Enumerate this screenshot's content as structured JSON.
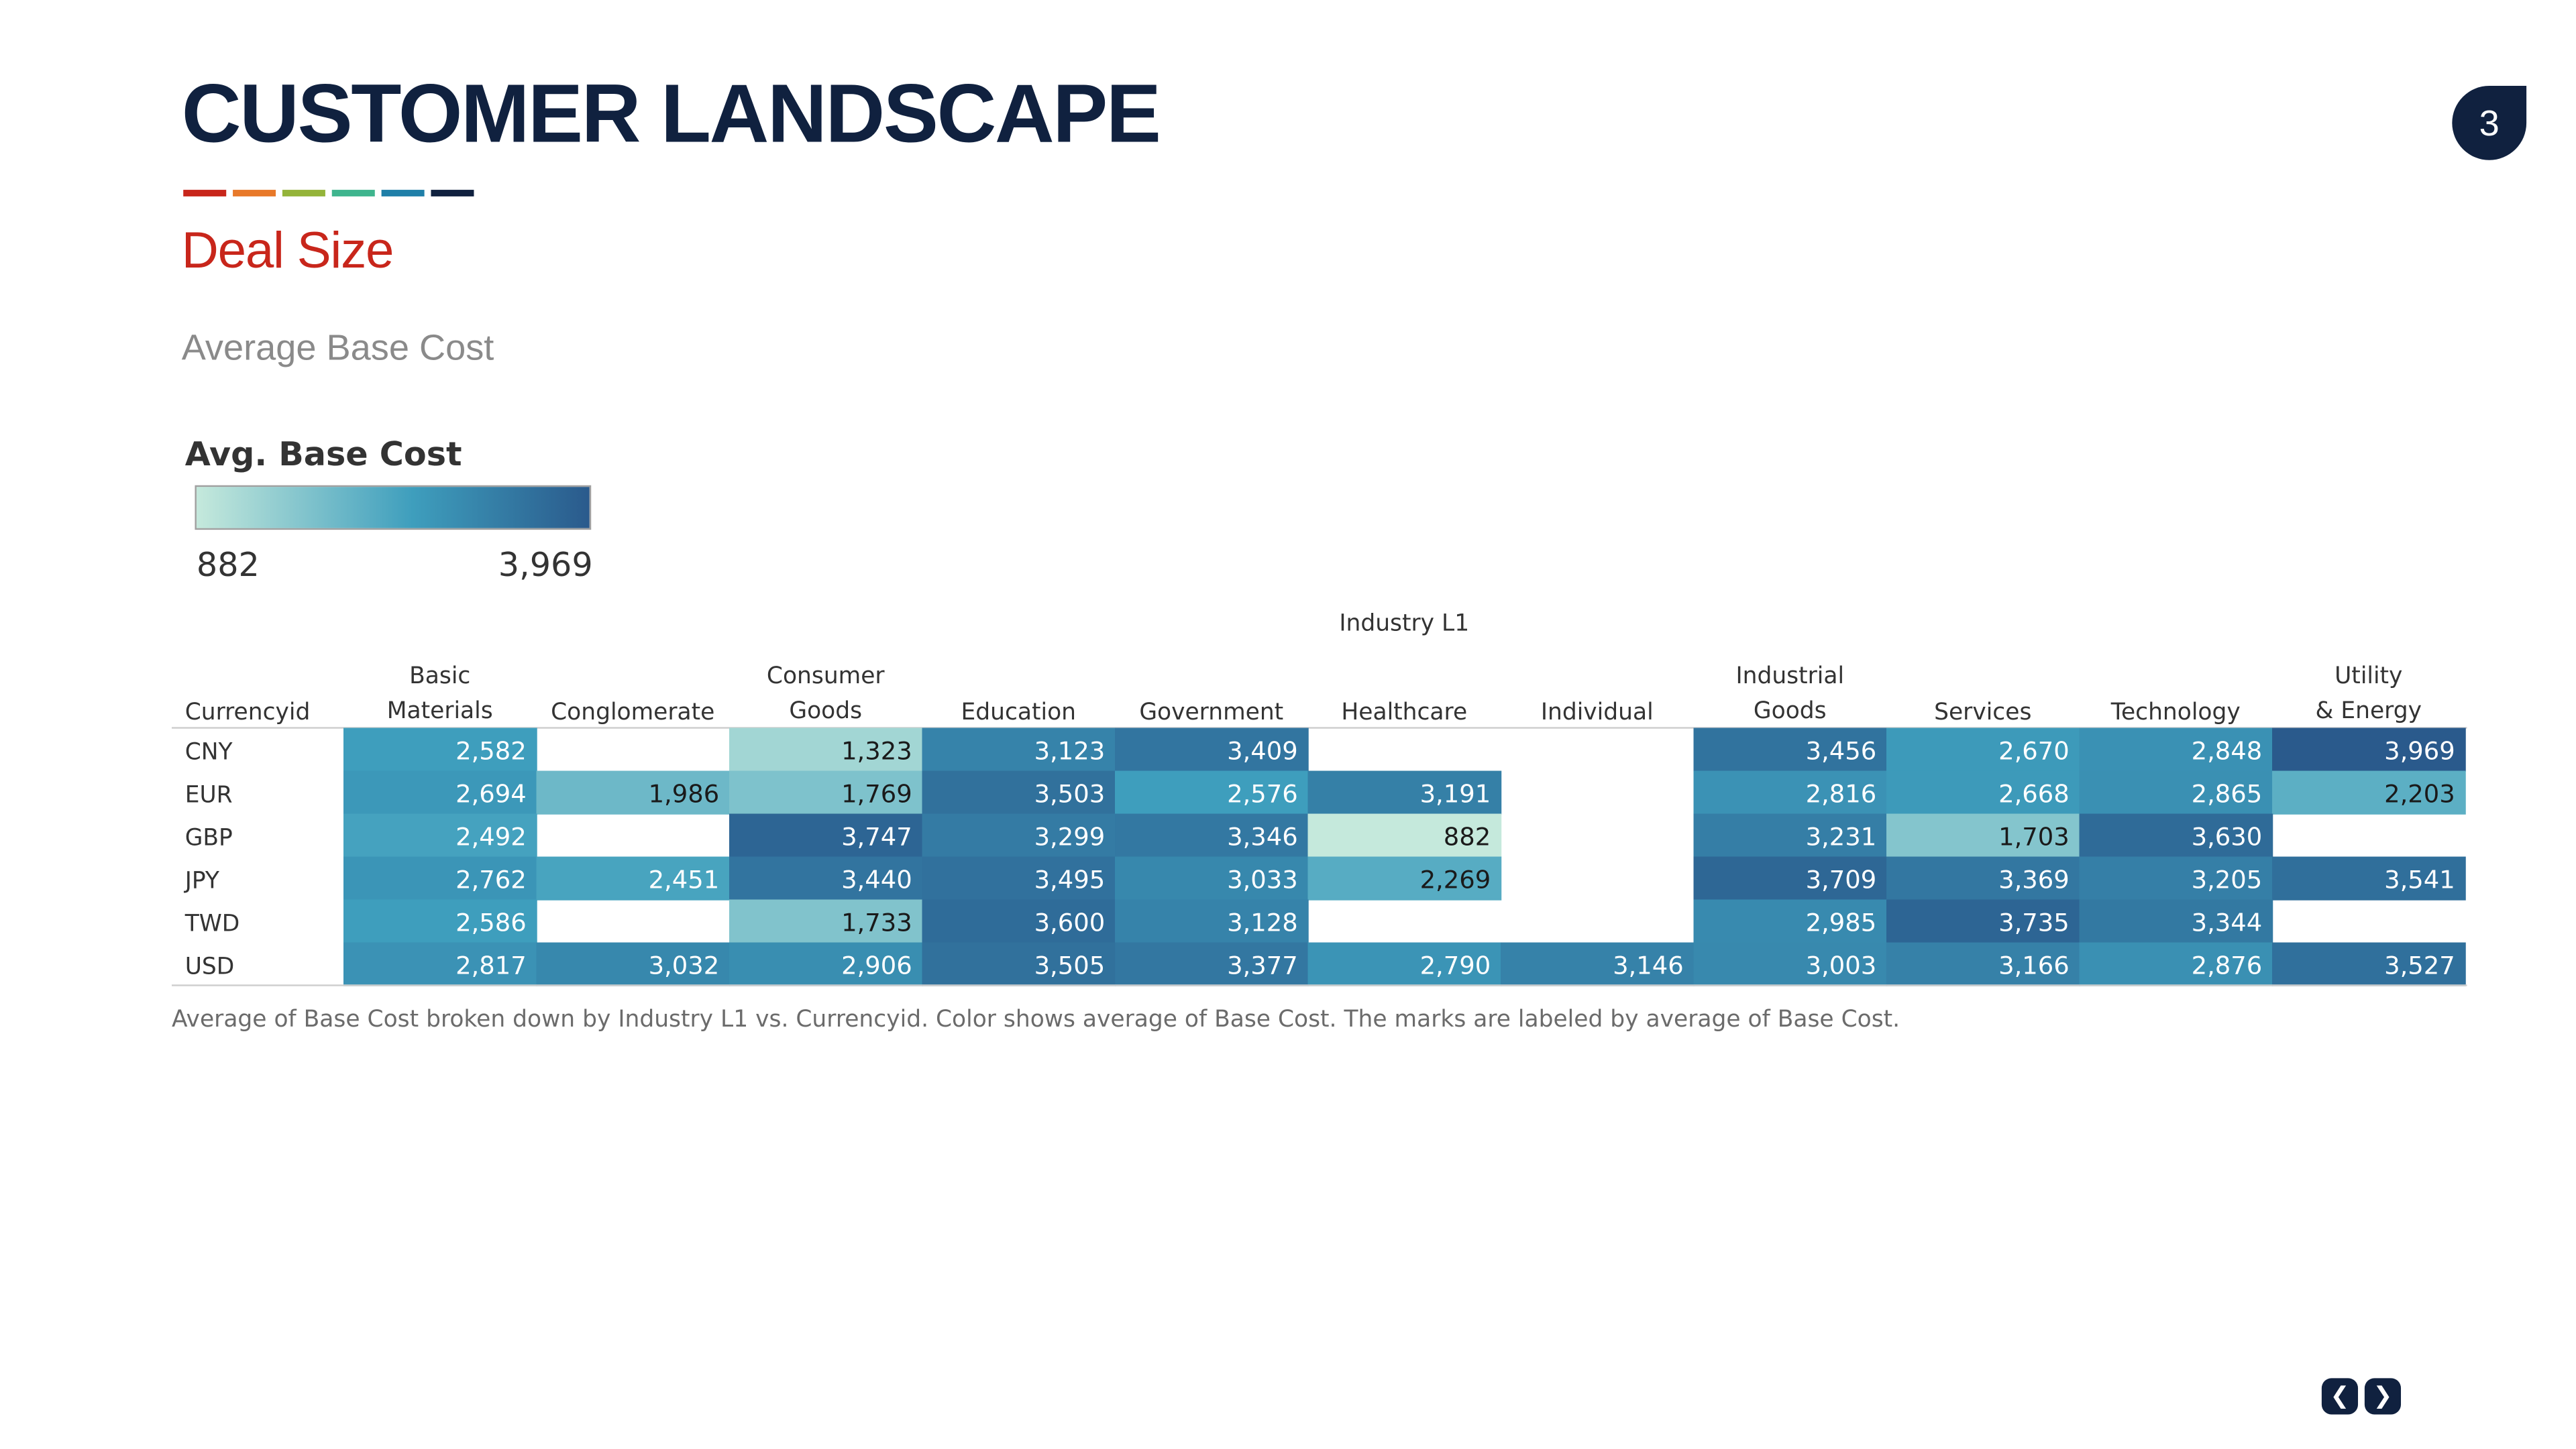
{
  "header": {
    "title": "CUSTOMER LANDSCAPE",
    "page_number": "3",
    "subtitle": "Deal Size",
    "accent_colors": [
      "#c8261b",
      "#e8792a",
      "#94b43a",
      "#3fb58e",
      "#1f7fa8",
      "#10213f"
    ]
  },
  "sheet": {
    "title": "Average Base Cost",
    "caption": "Average of Base Cost broken down by Industry L1 vs. Currencyid.  Color shows average of Base Cost.  The marks are labeled by average of Base Cost."
  },
  "legend": {
    "title": "Avg. Base Cost",
    "min_label": "882",
    "max_label": "3,969",
    "color_low": "#c5e9dc",
    "color_mid": "#3e9ebd",
    "color_high": "#2a5a8c"
  },
  "navigation": {
    "prev_icon": "chevron-left-icon",
    "next_icon": "chevron-right-icon"
  },
  "chart_data": {
    "type": "heatmap",
    "column_group_label": "Industry L1",
    "row_header": "Currencyid",
    "columns": [
      "Basic Materials",
      "Conglomerate",
      "Consumer Goods",
      "Education",
      "Government",
      "Healthcare",
      "Individual",
      "Industrial Goods",
      "Services",
      "Technology",
      "Utility & Energy"
    ],
    "rows": [
      "CNY",
      "EUR",
      "GBP",
      "JPY",
      "TWD",
      "USD"
    ],
    "values": [
      [
        2582,
        null,
        1323,
        3123,
        3409,
        null,
        null,
        3456,
        2670,
        2848,
        3969
      ],
      [
        2694,
        1986,
        1769,
        3503,
        2576,
        3191,
        null,
        2816,
        2668,
        2865,
        2203
      ],
      [
        2492,
        null,
        3747,
        3299,
        3346,
        882,
        null,
        3231,
        1703,
        3630,
        null
      ],
      [
        2762,
        2451,
        3440,
        3495,
        3033,
        2269,
        null,
        3709,
        3369,
        3205,
        3541
      ],
      [
        2586,
        null,
        1733,
        3600,
        3128,
        null,
        null,
        2985,
        3735,
        3344,
        null
      ],
      [
        2817,
        3032,
        2906,
        3505,
        3377,
        2790,
        3146,
        3003,
        3166,
        2876,
        3527
      ]
    ],
    "value_range": [
      882,
      3969
    ]
  }
}
